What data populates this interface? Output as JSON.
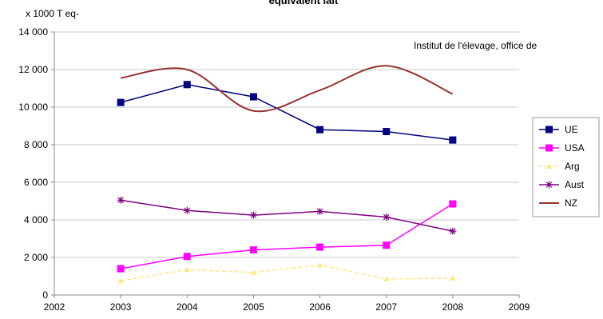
{
  "chart_data": {
    "type": "line",
    "title": "équivalent lait",
    "ylabel": "x 1000 T eq-",
    "annotation": "Institut de l'élevage, office de",
    "xlim": [
      2002,
      2009
    ],
    "ylim": [
      0,
      14000
    ],
    "x_ticks": [
      2002,
      2003,
      2004,
      2005,
      2006,
      2007,
      2008,
      2009
    ],
    "y_ticks": [
      0,
      2000,
      4000,
      6000,
      8000,
      10000,
      12000,
      14000
    ],
    "x_tick_labels": [
      "2002",
      "2003",
      "2004",
      "2005",
      "2006",
      "2007",
      "2008",
      "2009"
    ],
    "y_tick_labels": [
      "0",
      "2 000",
      "4 000",
      "6 000",
      "8 000",
      "10 000",
      "12 000",
      "14 000"
    ],
    "grid": "horizontal",
    "legend_position": "right",
    "x": [
      2003,
      2004,
      2005,
      2006,
      2007,
      2008
    ],
    "series": [
      {
        "name": "UE",
        "values": [
          10250,
          11200,
          10550,
          8800,
          8700,
          8250
        ],
        "color": "#000080",
        "marker": "square",
        "smooth": false,
        "dashed": false
      },
      {
        "name": "USA",
        "values": [
          1400,
          2050,
          2400,
          2550,
          2650,
          4850
        ],
        "color": "#ff00ff",
        "marker": "square",
        "smooth": false,
        "dashed": false
      },
      {
        "name": "Arg",
        "values": [
          750,
          1350,
          1200,
          1600,
          850,
          900
        ],
        "color": "#ffe680",
        "marker": "triangle",
        "smooth": false,
        "dashed": true
      },
      {
        "name": "Aust",
        "values": [
          5050,
          4500,
          4250,
          4450,
          4150,
          3400
        ],
        "color": "#800080",
        "marker": "star",
        "smooth": false,
        "dashed": false
      },
      {
        "name": "NZ",
        "values": [
          11550,
          12000,
          9800,
          10900,
          12200,
          10700
        ],
        "color": "#993333",
        "marker": "none",
        "smooth": true,
        "dashed": false
      }
    ]
  }
}
